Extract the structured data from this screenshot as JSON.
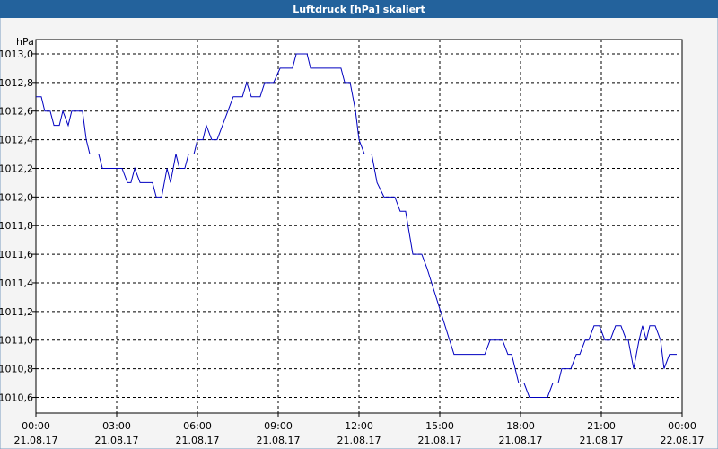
{
  "chart_data": {
    "type": "line",
    "title": "Luftdruck [hPa] skaliert",
    "y_unit": "hPa",
    "xlim": [
      0,
      24
    ],
    "xticks": [
      {
        "value": 0,
        "label": "00:00",
        "date": "21.08.17"
      },
      {
        "value": 3,
        "label": "03:00",
        "date": "21.08.17"
      },
      {
        "value": 6,
        "label": "06:00",
        "date": "21.08.17"
      },
      {
        "value": 9,
        "label": "09:00",
        "date": "21.08.17"
      },
      {
        "value": 12,
        "label": "12:00",
        "date": "21.08.17"
      },
      {
        "value": 15,
        "label": "15:00",
        "date": "21.08.17"
      },
      {
        "value": 18,
        "label": "18:00",
        "date": "21.08.17"
      },
      {
        "value": 21,
        "label": "21:00",
        "date": "21.08.17"
      },
      {
        "value": 24,
        "label": "00:00",
        "date": "22.08.17"
      }
    ],
    "ylim": [
      1010.49,
      1013.1
    ],
    "yticks": [
      {
        "value": 1010.6,
        "label": "1010,6"
      },
      {
        "value": 1010.8,
        "label": "1010,8"
      },
      {
        "value": 1011,
        "label": "1011,0"
      },
      {
        "value": 1011.2,
        "label": "1011,2"
      },
      {
        "value": 1011.4,
        "label": "1011,4"
      },
      {
        "value": 1011.6,
        "label": "1011,6"
      },
      {
        "value": 1011.8,
        "label": "1011,8"
      },
      {
        "value": 1012,
        "label": "1012,0"
      },
      {
        "value": 1012.2,
        "label": "1012,2"
      },
      {
        "value": 1012.4,
        "label": "1012,4"
      },
      {
        "value": 1012.6,
        "label": "1012,6"
      },
      {
        "value": 1012.8,
        "label": "1012,8"
      },
      {
        "value": 1013,
        "label": "1013,0"
      }
    ],
    "grid": true,
    "series": [
      {
        "color": "#0000c0",
        "x": [
          0,
          0.2,
          0.33,
          0.53,
          0.67,
          0.87,
          1.0,
          1.2,
          1.33,
          1.73,
          1.87,
          2.0,
          2.33,
          2.47,
          3.2,
          3.4,
          3.53,
          3.67,
          3.87,
          4.33,
          4.47,
          4.67,
          4.87,
          5.0,
          5.2,
          5.33,
          5.53,
          5.67,
          5.87,
          6.0,
          6.2,
          6.33,
          6.53,
          6.73,
          6.93,
          7.13,
          7.33,
          7.67,
          7.83,
          8.0,
          8.33,
          8.5,
          8.83,
          9.07,
          9.53,
          9.67,
          10.07,
          10.2,
          11.33,
          11.47,
          11.67,
          11.87,
          12.0,
          12.2,
          12.47,
          12.67,
          12.93,
          13.33,
          13.53,
          13.73,
          14.0,
          14.33,
          14.53,
          15.53,
          16.67,
          16.87,
          17.33,
          17.53,
          17.67,
          17.93,
          18.13,
          18.33,
          19.0,
          19.2,
          19.4,
          19.53,
          19.87,
          20.07,
          20.2,
          20.4,
          20.53,
          20.73,
          20.93,
          21.13,
          21.33,
          21.53,
          21.73,
          21.93,
          22.0,
          22.2,
          22.4,
          22.53,
          22.67,
          22.8,
          23.0,
          23.2,
          23.33,
          23.53,
          23.8
        ],
        "values": [
          1012.7,
          1012.7,
          1012.6,
          1012.6,
          1012.5,
          1012.5,
          1012.6,
          1012.5,
          1012.6,
          1012.6,
          1012.4,
          1012.3,
          1012.3,
          1012.2,
          1012.2,
          1012.1,
          1012.1,
          1012.2,
          1012.1,
          1012.1,
          1012.0,
          1012.0,
          1012.2,
          1012.1,
          1012.3,
          1012.2,
          1012.2,
          1012.3,
          1012.3,
          1012.4,
          1012.4,
          1012.5,
          1012.4,
          1012.4,
          1012.5,
          1012.6,
          1012.7,
          1012.7,
          1012.8,
          1012.7,
          1012.7,
          1012.8,
          1012.8,
          1012.9,
          1012.9,
          1013.0,
          1013.0,
          1012.9,
          1012.9,
          1012.8,
          1012.8,
          1012.6,
          1012.4,
          1012.3,
          1012.3,
          1012.1,
          1012.0,
          1012.0,
          1011.9,
          1011.9,
          1011.6,
          1011.6,
          1011.5,
          1010.9,
          1010.9,
          1011.0,
          1011.0,
          1010.9,
          1010.9,
          1010.7,
          1010.7,
          1010.6,
          1010.6,
          1010.7,
          1010.7,
          1010.8,
          1010.8,
          1010.9,
          1010.9,
          1011.0,
          1011.0,
          1011.1,
          1011.1,
          1011.0,
          1011.0,
          1011.1,
          1011.1,
          1011.0,
          1011.0,
          1010.8,
          1011.0,
          1011.1,
          1011.0,
          1011.1,
          1011.1,
          1011.0,
          1010.8,
          1010.9,
          1010.9
        ]
      }
    ]
  }
}
